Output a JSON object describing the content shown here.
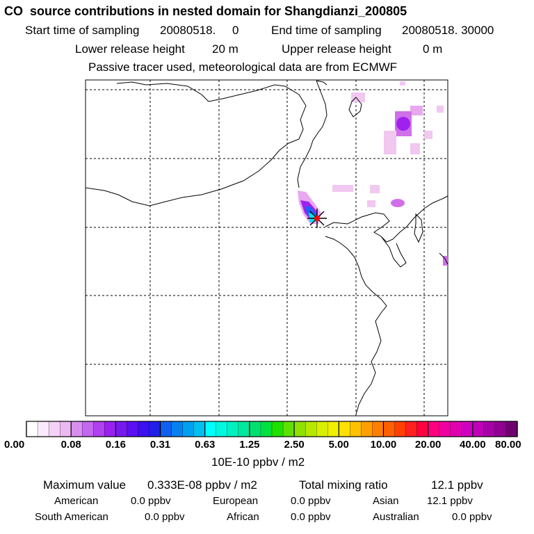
{
  "header": {
    "title": "CO  source contributions in nested domain for Shangdianzi_200805",
    "start_label": "Start time of sampling",
    "start_value": "20080518.     0",
    "end_label": "End time of sampling",
    "end_value": "20080518. 30000",
    "lower_label": "Lower release height",
    "lower_value": "20 m",
    "upper_label": "Upper release height",
    "upper_value": "0 m",
    "subtitle": "Passive tracer used, meteorological data are from ECMWF"
  },
  "colorbar": {
    "ticks": [
      "0.00",
      "0.08",
      "0.16",
      "0.31",
      "0.63",
      "1.25",
      "2.50",
      "5.00",
      "10.00",
      "20.00",
      "40.00",
      "80.00"
    ],
    "unit": "10E-10 ppbv / m2",
    "colors": [
      "#ffffff",
      "#fbeafb",
      "#f4d2f6",
      "#ecbaf0",
      "#d88ef0",
      "#c468f0",
      "#b040f0",
      "#9a20f0",
      "#7818f0",
      "#5a10f0",
      "#3c10f0",
      "#2020e8",
      "#1060f0",
      "#0880f0",
      "#00a0f0",
      "#00c0f0",
      "#00ffff",
      "#00f8e0",
      "#00f0c0",
      "#00e8a0",
      "#00e070",
      "#00e040",
      "#20e000",
      "#60e000",
      "#90e000",
      "#b8e800",
      "#d8f000",
      "#f0f000",
      "#ffe000",
      "#ffc000",
      "#ffa000",
      "#ff8000",
      "#ff6000",
      "#ff4000",
      "#ff2020",
      "#ff0040",
      "#ff0080",
      "#f000a0",
      "#e000b0",
      "#d000c0",
      "#c000b8",
      "#a800a8",
      "#900090",
      "#700070"
    ]
  },
  "footer": {
    "max_label": "Maximum value",
    "max_value": "0.333E-08 ppbv / m2",
    "total_label": "Total mixing ratio",
    "total_value": "12.1 ppbv",
    "american_label": "American",
    "american_value": "0.0 ppbv",
    "european_label": "European",
    "european_value": "0.0 ppbv",
    "asian_label": "Asian",
    "asian_value": "12.1 ppbv",
    "south_american_label": "South American",
    "south_american_value": "0.0 ppbv",
    "african_label": "African",
    "african_value": "0.0 ppbv",
    "australian_label": "Australian",
    "australian_value": "0.0 ppbv"
  },
  "map": {
    "plume_colors": {
      "faint": "#f0c8f0",
      "light": "#e8a8f0",
      "mid": "#d070e8",
      "strong": "#a020f0",
      "blue": "#2060f0",
      "cyan": "#00e0f0",
      "source": "#ff0000"
    }
  }
}
